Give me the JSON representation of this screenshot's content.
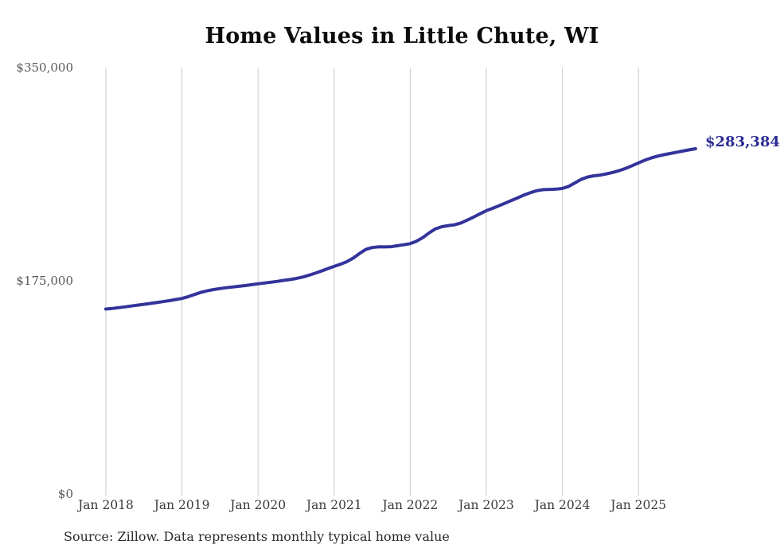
{
  "title": "Home Values in Little Chute, WI",
  "source_note": "Source: Zillow. Data represents monthly typical home value",
  "colors": {
    "line": "#33339b",
    "end_label": "#2c2c94",
    "grid": "#c9c9c9",
    "y_axis_text": "#565656",
    "x_axis_text": "#3a3a3a",
    "title_text": "#0c0c0c",
    "background": "#ffffff"
  },
  "chart_data": {
    "type": "line",
    "title": "Home Values in Little Chute, WI",
    "end_label": "$283,384",
    "end_value": 283384,
    "ylim": [
      0,
      350000
    ],
    "grid": "vertical-only",
    "legend": "none",
    "y_ticks": [
      {
        "label": "$0",
        "value": 0
      },
      {
        "label": "$175,000",
        "value": 175000
      },
      {
        "label": "$350,000",
        "value": 350000
      }
    ],
    "x_tick_labels": [
      "Jan 2018",
      "Jan 2019",
      "Jan 2020",
      "Jan 2021",
      "Jan 2022",
      "Jan 2023",
      "Jan 2024",
      "Jan 2025"
    ],
    "first_point_label": "Jan 2018",
    "points_are_monthly": true,
    "series": [
      {
        "name": "Typical home value",
        "values": [
          151800,
          152300,
          152900,
          153600,
          154300,
          155000,
          155700,
          156400,
          157100,
          157900,
          158700,
          159600,
          160500,
          162000,
          163800,
          165500,
          166800,
          167800,
          168600,
          169300,
          169900,
          170500,
          171100,
          171800,
          172500,
          173200,
          173800,
          174500,
          175300,
          176000,
          176900,
          178000,
          179500,
          181200,
          183000,
          184900,
          186800,
          188600,
          190700,
          193600,
          197400,
          200700,
          202300,
          202900,
          202800,
          203000,
          203800,
          204600,
          205500,
          207500,
          210500,
          214400,
          217700,
          219400,
          220300,
          221000,
          222500,
          224800,
          227300,
          230000,
          232500,
          234500,
          236600,
          238800,
          241000,
          243200,
          245500,
          247400,
          249000,
          249800,
          250000,
          250200,
          250800,
          252500,
          255400,
          258400,
          260200,
          261200,
          261800,
          262800,
          264000,
          265500,
          267300,
          269500,
          271800,
          274000,
          275800,
          277300,
          278500,
          279500,
          280500,
          281500,
          282500,
          283384
        ]
      }
    ]
  }
}
